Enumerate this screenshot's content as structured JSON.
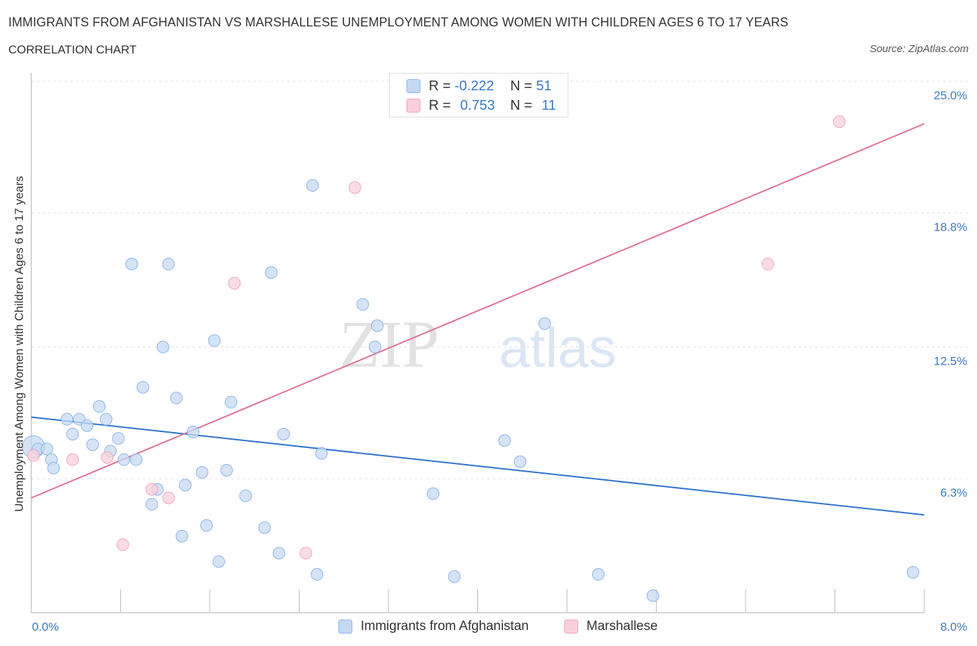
{
  "header": {
    "title": "IMMIGRANTS FROM AFGHANISTAN VS MARSHALLESE UNEMPLOYMENT AMONG WOMEN WITH CHILDREN AGES 6 TO 17 YEARS",
    "subtitle": "CORRELATION CHART",
    "source": "Source: ZipAtlas.com"
  },
  "watermark": {
    "zip": "ZIP",
    "atlas": "atlas"
  },
  "legend": {
    "rows": [
      {
        "r_label": "R =",
        "r_value": "-0.222",
        "n_label": "N =",
        "n_value": "51",
        "color": "#a9c6ef"
      },
      {
        "r_label": "R =",
        "r_value": "0.753",
        "n_label": "N =",
        "n_value": "11",
        "color": "#f5b8c9"
      }
    ]
  },
  "bottom_legend": {
    "afghanistan": "Immigrants from Afghanistan",
    "marshallese": "Marshallese"
  },
  "colors": {
    "blue_fill": "#c5d9f3",
    "blue_stroke": "#8db3e6",
    "blue_line": "#2f72cc",
    "pink_fill": "#f9d0dc",
    "pink_stroke": "#efa3b9",
    "pink_line": "#e07099",
    "tick_text": "#3b78c4",
    "grid": "#dde3ec"
  },
  "chart_data": {
    "type": "scatter",
    "ylabel": "Unemployment Among Women with Children Ages 6 to 17 years",
    "xlim": [
      0,
      8
    ],
    "ylim": [
      0,
      25
    ],
    "x_tick_labels": [
      "0.0%",
      "8.0%"
    ],
    "y_ticks": [
      6.3,
      12.5,
      18.8,
      25.0
    ],
    "y_tick_labels": [
      "6.3%",
      "12.5%",
      "18.8%",
      "25.0%"
    ],
    "grid": "horizontal dashed",
    "series": [
      {
        "name": "Immigrants from Afghanistan",
        "r": -0.222,
        "n": 51,
        "trend": {
          "x0": 0,
          "y0": 9.2,
          "x1": 8,
          "y1": 4.6
        },
        "points": [
          [
            0.02,
            7.8,
            1
          ],
          [
            0.06,
            7.7,
            0
          ],
          [
            0.14,
            7.7,
            0
          ],
          [
            0.18,
            7.2,
            0
          ],
          [
            0.2,
            6.8,
            0
          ],
          [
            0.32,
            9.1,
            0
          ],
          [
            0.37,
            8.4,
            0
          ],
          [
            0.43,
            9.1,
            0
          ],
          [
            0.5,
            8.8,
            0
          ],
          [
            0.55,
            7.9,
            0
          ],
          [
            0.61,
            9.7,
            0
          ],
          [
            0.67,
            9.1,
            0
          ],
          [
            0.71,
            7.6,
            0
          ],
          [
            0.78,
            8.2,
            0
          ],
          [
            0.83,
            7.2,
            0
          ],
          [
            0.9,
            16.4,
            0
          ],
          [
            0.94,
            7.2,
            0
          ],
          [
            1.0,
            10.6,
            0
          ],
          [
            1.08,
            5.1,
            0
          ],
          [
            1.13,
            5.8,
            0
          ],
          [
            1.18,
            12.5,
            0
          ],
          [
            1.23,
            16.4,
            0
          ],
          [
            1.3,
            10.1,
            0
          ],
          [
            1.35,
            3.6,
            0
          ],
          [
            1.38,
            6.0,
            0
          ],
          [
            1.45,
            8.5,
            0
          ],
          [
            1.53,
            6.6,
            0
          ],
          [
            1.57,
            4.1,
            0
          ],
          [
            1.64,
            12.8,
            0
          ],
          [
            1.68,
            2.4,
            0
          ],
          [
            1.75,
            6.7,
            0
          ],
          [
            1.79,
            9.9,
            0
          ],
          [
            1.92,
            5.5,
            0
          ],
          [
            2.09,
            4.0,
            0
          ],
          [
            2.15,
            16.0,
            0
          ],
          [
            2.22,
            2.8,
            0
          ],
          [
            2.26,
            8.4,
            0
          ],
          [
            2.52,
            20.1,
            0
          ],
          [
            2.56,
            1.8,
            0
          ],
          [
            2.6,
            7.5,
            0
          ],
          [
            2.97,
            14.5,
            0
          ],
          [
            3.08,
            12.5,
            0
          ],
          [
            3.1,
            13.5,
            0
          ],
          [
            3.6,
            5.6,
            0
          ],
          [
            3.79,
            1.7,
            0
          ],
          [
            4.24,
            8.1,
            0
          ],
          [
            4.38,
            7.1,
            0
          ],
          [
            4.6,
            13.6,
            0
          ],
          [
            5.08,
            1.8,
            0
          ],
          [
            5.57,
            0.8,
            0
          ],
          [
            7.9,
            1.9,
            0
          ]
        ]
      },
      {
        "name": "Marshallese",
        "r": 0.753,
        "n": 11,
        "trend": {
          "x0": 0,
          "y0": 5.4,
          "x1": 8,
          "y1": 23.0
        },
        "points": [
          [
            0.02,
            7.4,
            0
          ],
          [
            0.37,
            7.2,
            0
          ],
          [
            0.68,
            7.3,
            0
          ],
          [
            0.82,
            3.2,
            0
          ],
          [
            1.08,
            5.8,
            0
          ],
          [
            1.23,
            5.4,
            0
          ],
          [
            1.82,
            15.5,
            0
          ],
          [
            2.46,
            2.8,
            0
          ],
          [
            2.9,
            20.0,
            0
          ],
          [
            6.6,
            16.4,
            0
          ],
          [
            7.24,
            23.1,
            0
          ]
        ]
      }
    ]
  }
}
